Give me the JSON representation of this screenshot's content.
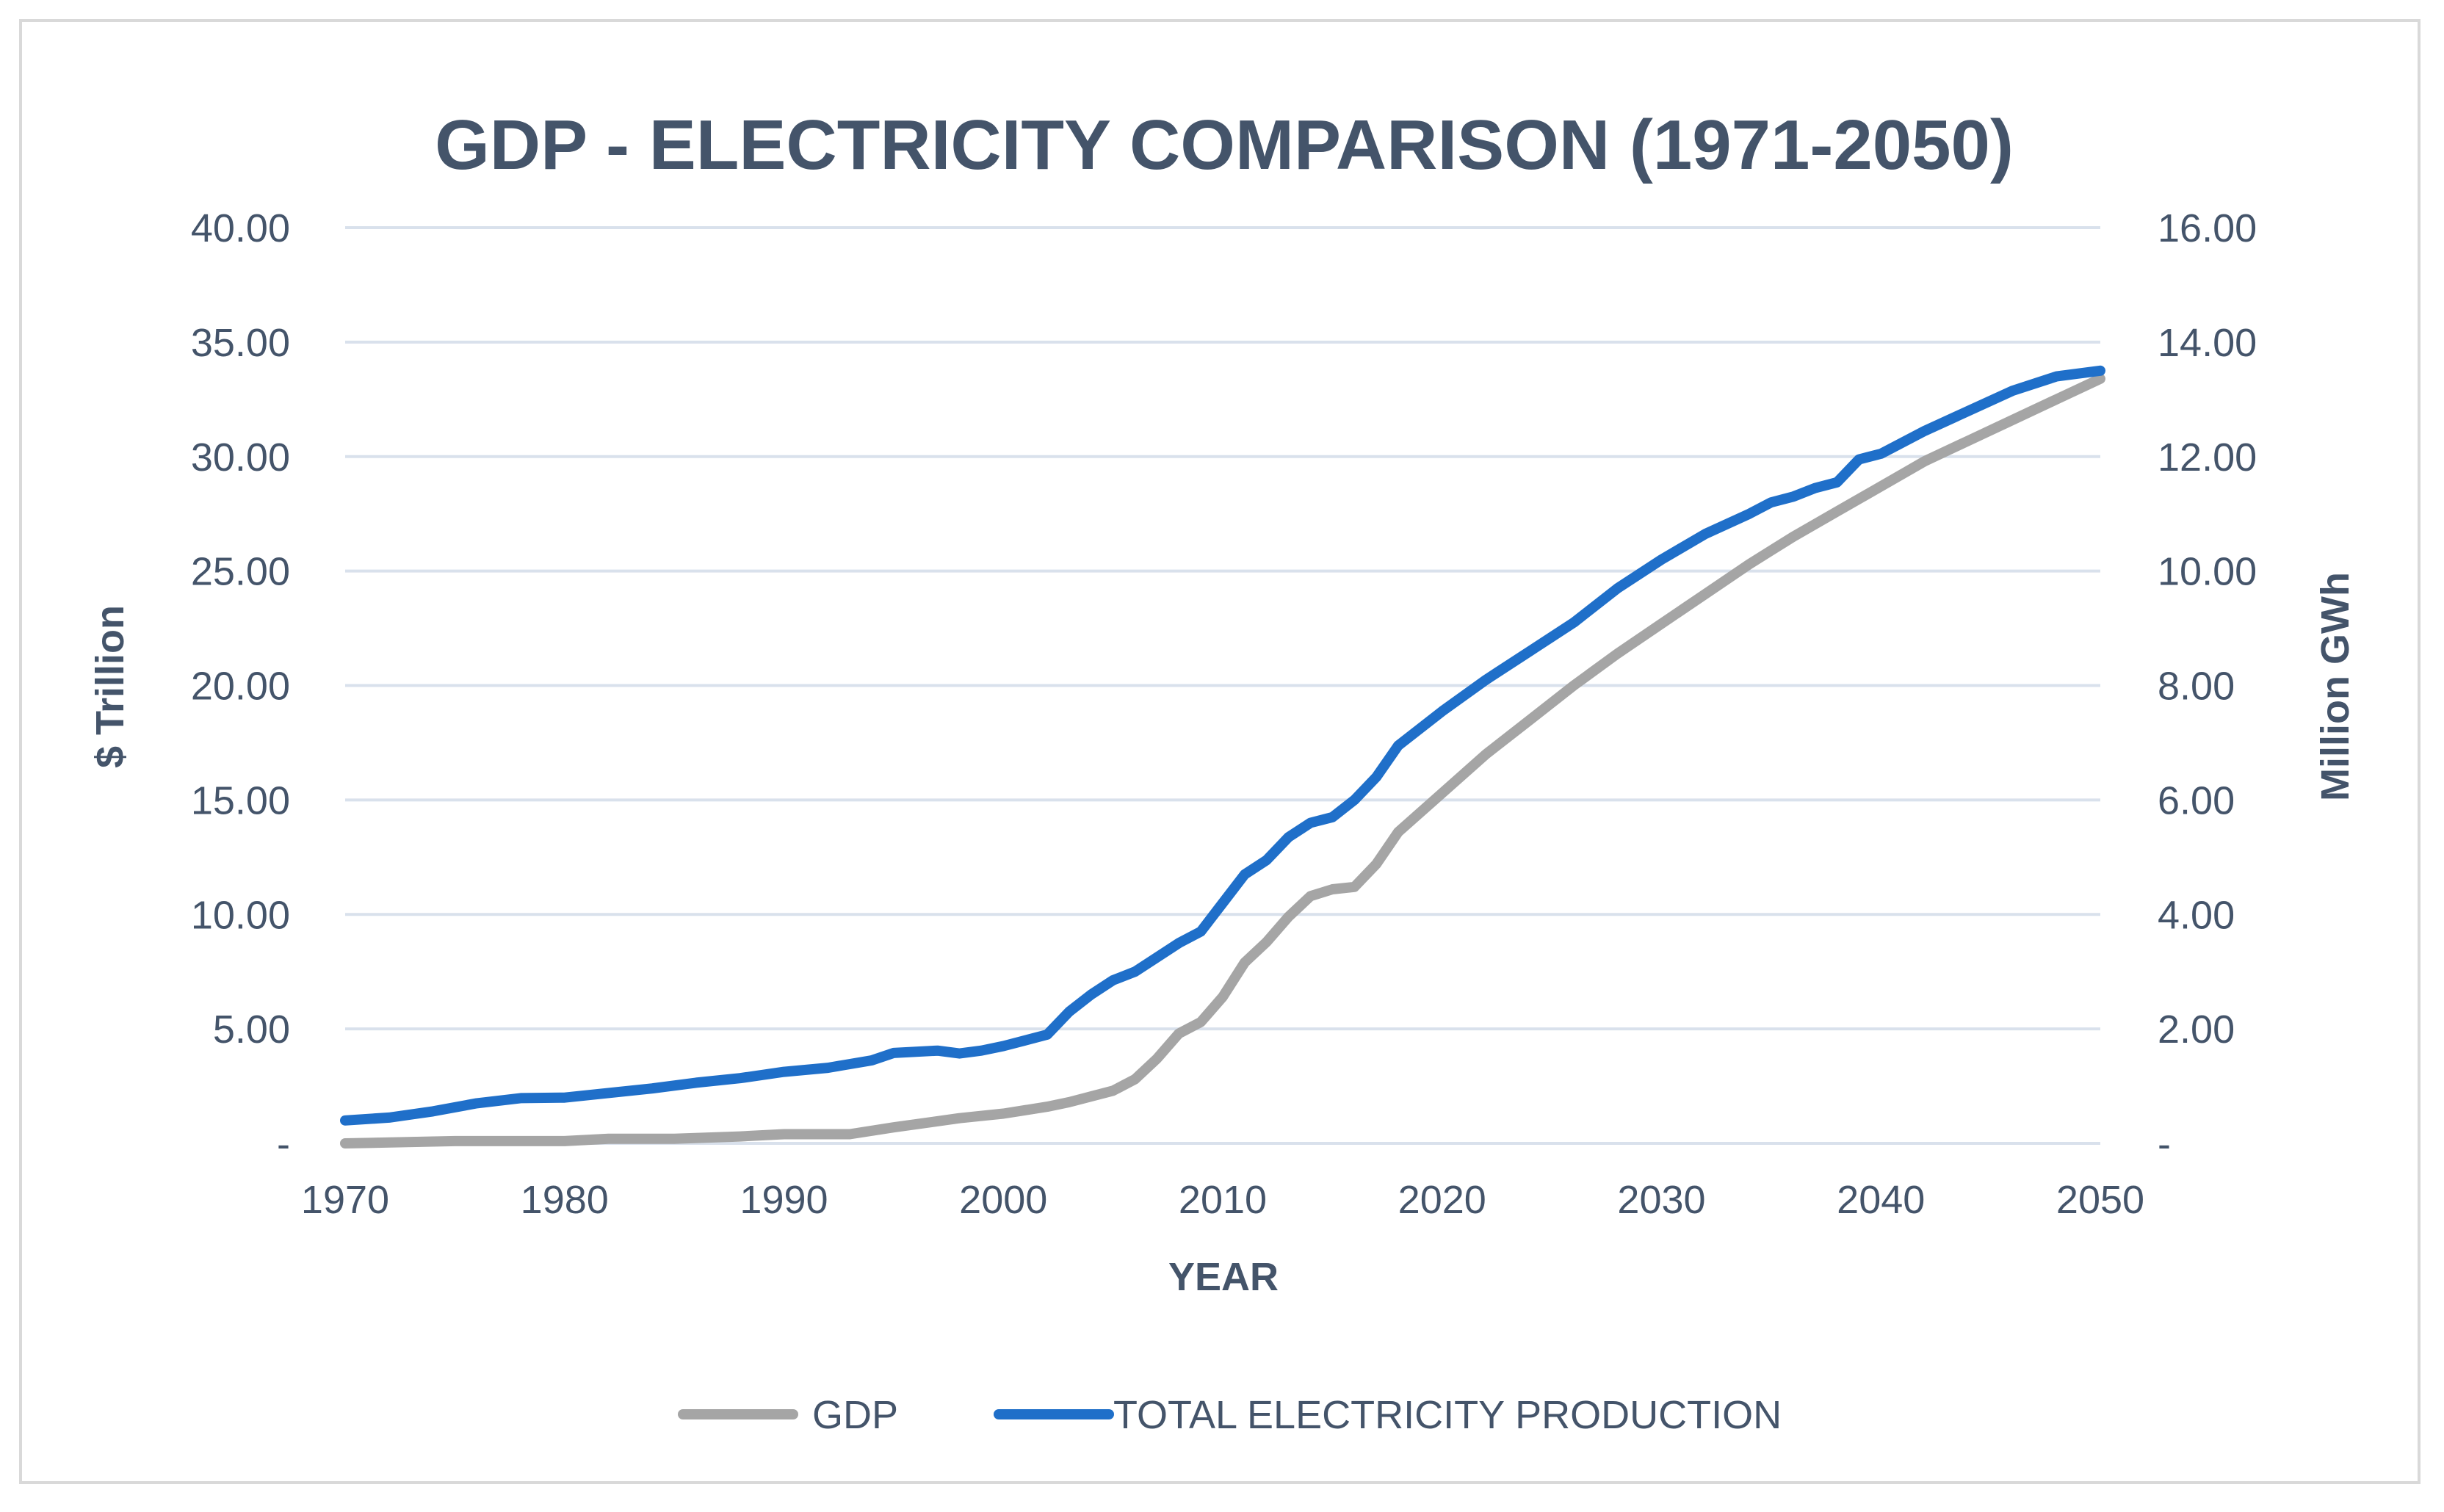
{
  "chart_data": {
    "type": "line",
    "title": "GDP - ELECTRICITY COMPARISON (1971-2050)",
    "xlabel": "YEAR",
    "ylabel": "$ Trillion",
    "y2label": "Million GWh",
    "xlim": [
      1970,
      2050
    ],
    "ylim": [
      0,
      40
    ],
    "y2lim": [
      0,
      16
    ],
    "x_ticks": [
      1970,
      1980,
      1990,
      2000,
      2010,
      2020,
      2030,
      2040,
      2050
    ],
    "x_tick_labels": [
      "1970",
      "1980",
      "1990",
      "2000",
      "2010",
      "2020",
      "2030",
      "2040",
      "2050"
    ],
    "y_tick_labels": [
      "-",
      "5.00",
      "10.00",
      "15.00",
      "20.00",
      "25.00",
      "30.00",
      "35.00",
      "40.00"
    ],
    "y2_tick_labels": [
      "-",
      "2.00",
      "4.00",
      "6.00",
      "8.00",
      "10.00",
      "12.00",
      "14.00",
      "16.00"
    ],
    "grid": true,
    "legend_position": "bottom",
    "series": [
      {
        "name": "GDP",
        "axis": "left",
        "color": "#a5a5a5",
        "x": [
          1970,
          1975,
          1980,
          1982,
          1985,
          1988,
          1990,
          1993,
          1995,
          1998,
          2000,
          2002,
          2003,
          2005,
          2006,
          2007,
          2008,
          2009,
          2010,
          2011,
          2012,
          2013,
          2014,
          2015,
          2016,
          2017,
          2018,
          2020,
          2022,
          2024,
          2026,
          2028,
          2030,
          2032,
          2034,
          2036,
          2038,
          2040,
          2042,
          2044,
          2046,
          2048,
          2050
        ],
        "values": [
          0.0,
          0.1,
          0.1,
          0.2,
          0.2,
          0.3,
          0.4,
          0.4,
          0.7,
          1.1,
          1.3,
          1.6,
          1.8,
          2.3,
          2.8,
          3.7,
          4.8,
          5.3,
          6.4,
          7.9,
          8.8,
          9.9,
          10.8,
          11.1,
          11.2,
          12.2,
          13.6,
          15.3,
          17.0,
          18.5,
          20.0,
          21.4,
          22.7,
          24.0,
          25.3,
          26.5,
          27.6,
          28.7,
          29.8,
          30.7,
          31.6,
          32.5,
          33.4
        ]
      },
      {
        "name": "TOTAL ELECTRICITY PRODUCTION",
        "axis": "right",
        "color": "#1f6fc9",
        "x": [
          1970,
          1972,
          1974,
          1976,
          1978,
          1980,
          1982,
          1984,
          1986,
          1988,
          1990,
          1992,
          1994,
          1995,
          1997,
          1998,
          1999,
          2000,
          2002,
          2003,
          2004,
          2005,
          2006,
          2007,
          2008,
          2009,
          2010,
          2011,
          2012,
          2013,
          2014,
          2015,
          2016,
          2017,
          2018,
          2020,
          2022,
          2024,
          2026,
          2028,
          2030,
          2032,
          2034,
          2035,
          2036,
          2037,
          2038,
          2039,
          2040,
          2042,
          2044,
          2046,
          2048,
          2050
        ],
        "values": [
          0.4,
          0.45,
          0.56,
          0.7,
          0.79,
          0.8,
          0.88,
          0.96,
          1.06,
          1.14,
          1.25,
          1.32,
          1.45,
          1.58,
          1.62,
          1.57,
          1.62,
          1.7,
          1.9,
          2.3,
          2.6,
          2.85,
          3.0,
          3.25,
          3.5,
          3.7,
          4.2,
          4.7,
          4.95,
          5.35,
          5.6,
          5.7,
          6.0,
          6.4,
          6.95,
          7.55,
          8.1,
          8.6,
          9.1,
          9.7,
          10.2,
          10.65,
          11.0,
          11.2,
          11.3,
          11.45,
          11.55,
          11.95,
          12.05,
          12.45,
          12.8,
          13.15,
          13.4,
          13.5
        ]
      }
    ]
  }
}
